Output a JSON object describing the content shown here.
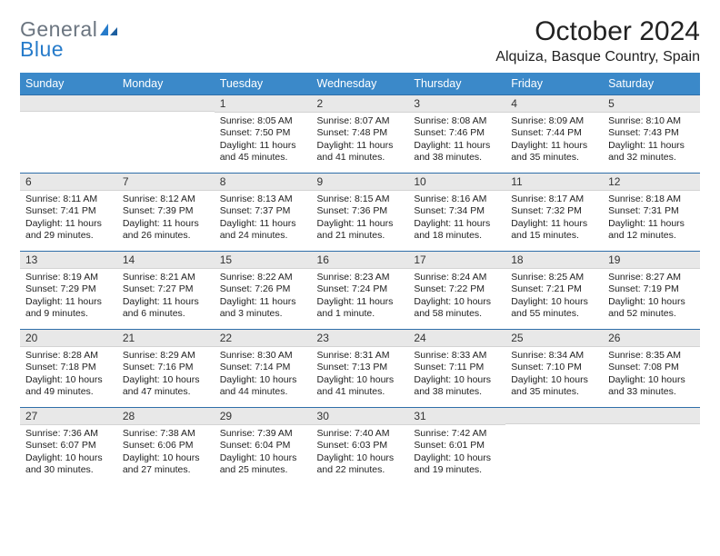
{
  "logo": {
    "word1": "General",
    "word2": "Blue"
  },
  "title": "October 2024",
  "location": "Alquiza, Basque Country, Spain",
  "colors": {
    "header_bg": "#3b89c9",
    "header_text": "#ffffff",
    "daynum_bg": "#e8e8e8",
    "rule": "#2f6ea9",
    "logo_gray": "#6b7580",
    "logo_blue": "#267bca"
  },
  "fonts": {
    "title_pt": 30,
    "location_pt": 16,
    "header_pt": 12.5,
    "cell_pt": 10.5
  },
  "day_headers": [
    "Sunday",
    "Monday",
    "Tuesday",
    "Wednesday",
    "Thursday",
    "Friday",
    "Saturday"
  ],
  "weeks": [
    [
      {
        "num": "",
        "sunrise": "",
        "sunset": "",
        "daylight": ""
      },
      {
        "num": "",
        "sunrise": "",
        "sunset": "",
        "daylight": ""
      },
      {
        "num": "1",
        "sunrise": "Sunrise: 8:05 AM",
        "sunset": "Sunset: 7:50 PM",
        "daylight": "Daylight: 11 hours and 45 minutes."
      },
      {
        "num": "2",
        "sunrise": "Sunrise: 8:07 AM",
        "sunset": "Sunset: 7:48 PM",
        "daylight": "Daylight: 11 hours and 41 minutes."
      },
      {
        "num": "3",
        "sunrise": "Sunrise: 8:08 AM",
        "sunset": "Sunset: 7:46 PM",
        "daylight": "Daylight: 11 hours and 38 minutes."
      },
      {
        "num": "4",
        "sunrise": "Sunrise: 8:09 AM",
        "sunset": "Sunset: 7:44 PM",
        "daylight": "Daylight: 11 hours and 35 minutes."
      },
      {
        "num": "5",
        "sunrise": "Sunrise: 8:10 AM",
        "sunset": "Sunset: 7:43 PM",
        "daylight": "Daylight: 11 hours and 32 minutes."
      }
    ],
    [
      {
        "num": "6",
        "sunrise": "Sunrise: 8:11 AM",
        "sunset": "Sunset: 7:41 PM",
        "daylight": "Daylight: 11 hours and 29 minutes."
      },
      {
        "num": "7",
        "sunrise": "Sunrise: 8:12 AM",
        "sunset": "Sunset: 7:39 PM",
        "daylight": "Daylight: 11 hours and 26 minutes."
      },
      {
        "num": "8",
        "sunrise": "Sunrise: 8:13 AM",
        "sunset": "Sunset: 7:37 PM",
        "daylight": "Daylight: 11 hours and 24 minutes."
      },
      {
        "num": "9",
        "sunrise": "Sunrise: 8:15 AM",
        "sunset": "Sunset: 7:36 PM",
        "daylight": "Daylight: 11 hours and 21 minutes."
      },
      {
        "num": "10",
        "sunrise": "Sunrise: 8:16 AM",
        "sunset": "Sunset: 7:34 PM",
        "daylight": "Daylight: 11 hours and 18 minutes."
      },
      {
        "num": "11",
        "sunrise": "Sunrise: 8:17 AM",
        "sunset": "Sunset: 7:32 PM",
        "daylight": "Daylight: 11 hours and 15 minutes."
      },
      {
        "num": "12",
        "sunrise": "Sunrise: 8:18 AM",
        "sunset": "Sunset: 7:31 PM",
        "daylight": "Daylight: 11 hours and 12 minutes."
      }
    ],
    [
      {
        "num": "13",
        "sunrise": "Sunrise: 8:19 AM",
        "sunset": "Sunset: 7:29 PM",
        "daylight": "Daylight: 11 hours and 9 minutes."
      },
      {
        "num": "14",
        "sunrise": "Sunrise: 8:21 AM",
        "sunset": "Sunset: 7:27 PM",
        "daylight": "Daylight: 11 hours and 6 minutes."
      },
      {
        "num": "15",
        "sunrise": "Sunrise: 8:22 AM",
        "sunset": "Sunset: 7:26 PM",
        "daylight": "Daylight: 11 hours and 3 minutes."
      },
      {
        "num": "16",
        "sunrise": "Sunrise: 8:23 AM",
        "sunset": "Sunset: 7:24 PM",
        "daylight": "Daylight: 11 hours and 1 minute."
      },
      {
        "num": "17",
        "sunrise": "Sunrise: 8:24 AM",
        "sunset": "Sunset: 7:22 PM",
        "daylight": "Daylight: 10 hours and 58 minutes."
      },
      {
        "num": "18",
        "sunrise": "Sunrise: 8:25 AM",
        "sunset": "Sunset: 7:21 PM",
        "daylight": "Daylight: 10 hours and 55 minutes."
      },
      {
        "num": "19",
        "sunrise": "Sunrise: 8:27 AM",
        "sunset": "Sunset: 7:19 PM",
        "daylight": "Daylight: 10 hours and 52 minutes."
      }
    ],
    [
      {
        "num": "20",
        "sunrise": "Sunrise: 8:28 AM",
        "sunset": "Sunset: 7:18 PM",
        "daylight": "Daylight: 10 hours and 49 minutes."
      },
      {
        "num": "21",
        "sunrise": "Sunrise: 8:29 AM",
        "sunset": "Sunset: 7:16 PM",
        "daylight": "Daylight: 10 hours and 47 minutes."
      },
      {
        "num": "22",
        "sunrise": "Sunrise: 8:30 AM",
        "sunset": "Sunset: 7:14 PM",
        "daylight": "Daylight: 10 hours and 44 minutes."
      },
      {
        "num": "23",
        "sunrise": "Sunrise: 8:31 AM",
        "sunset": "Sunset: 7:13 PM",
        "daylight": "Daylight: 10 hours and 41 minutes."
      },
      {
        "num": "24",
        "sunrise": "Sunrise: 8:33 AM",
        "sunset": "Sunset: 7:11 PM",
        "daylight": "Daylight: 10 hours and 38 minutes."
      },
      {
        "num": "25",
        "sunrise": "Sunrise: 8:34 AM",
        "sunset": "Sunset: 7:10 PM",
        "daylight": "Daylight: 10 hours and 35 minutes."
      },
      {
        "num": "26",
        "sunrise": "Sunrise: 8:35 AM",
        "sunset": "Sunset: 7:08 PM",
        "daylight": "Daylight: 10 hours and 33 minutes."
      }
    ],
    [
      {
        "num": "27",
        "sunrise": "Sunrise: 7:36 AM",
        "sunset": "Sunset: 6:07 PM",
        "daylight": "Daylight: 10 hours and 30 minutes."
      },
      {
        "num": "28",
        "sunrise": "Sunrise: 7:38 AM",
        "sunset": "Sunset: 6:06 PM",
        "daylight": "Daylight: 10 hours and 27 minutes."
      },
      {
        "num": "29",
        "sunrise": "Sunrise: 7:39 AM",
        "sunset": "Sunset: 6:04 PM",
        "daylight": "Daylight: 10 hours and 25 minutes."
      },
      {
        "num": "30",
        "sunrise": "Sunrise: 7:40 AM",
        "sunset": "Sunset: 6:03 PM",
        "daylight": "Daylight: 10 hours and 22 minutes."
      },
      {
        "num": "31",
        "sunrise": "Sunrise: 7:42 AM",
        "sunset": "Sunset: 6:01 PM",
        "daylight": "Daylight: 10 hours and 19 minutes."
      },
      {
        "num": "",
        "sunrise": "",
        "sunset": "",
        "daylight": ""
      },
      {
        "num": "",
        "sunrise": "",
        "sunset": "",
        "daylight": ""
      }
    ]
  ]
}
